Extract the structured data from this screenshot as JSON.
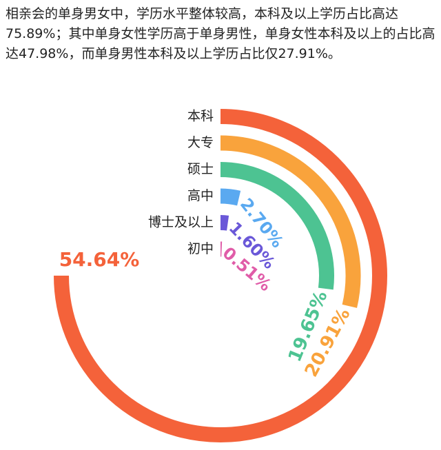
{
  "text": "相亲会的单身男女中，学历水平整体较高，本科及以上学历占比高达75.89%；其中单身女性学历高于单身男性，单身女性本科及以上的占比高达47.98%，而单身男性本科及以上学历占比仅27.91%。",
  "chart_data": {
    "type": "radial-bar",
    "categories": [
      "本科",
      "大专",
      "硕士",
      "高中",
      "博士及以上",
      "初中"
    ],
    "values": [
      54.64,
      20.91,
      19.65,
      2.7,
      1.6,
      0.51
    ],
    "value_labels": [
      "54.64%",
      "20.91%",
      "19.65%",
      "2.70%",
      "1.60%",
      "0.51%"
    ],
    "colors": [
      "#f4623a",
      "#f9a33c",
      "#4dc392",
      "#5aa9f0",
      "#6a58d8",
      "#e05ca8"
    ],
    "xlim": [
      0,
      72.85
    ]
  }
}
